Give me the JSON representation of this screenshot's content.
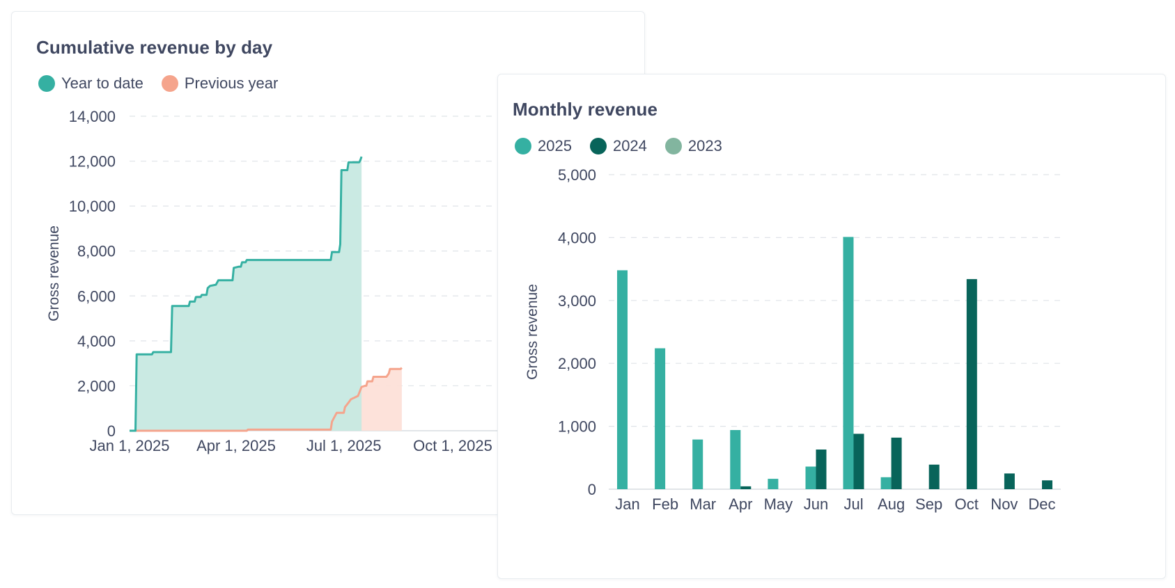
{
  "chart_data": [
    {
      "type": "area",
      "title": "Cumulative revenue by day",
      "xlabel": "",
      "ylabel": "Gross revenue",
      "ylim": [
        0,
        14000
      ],
      "yticks": [
        "0",
        "2,000",
        "4,000",
        "6,000",
        "8,000",
        "10,000",
        "12,000",
        "14,000"
      ],
      "ytick_values": [
        0,
        2000,
        4000,
        6000,
        8000,
        10000,
        12000,
        14000
      ],
      "xlim": [
        "2025-01-01",
        "2025-11-01"
      ],
      "xticks": [
        {
          "label": "Jan 1, 2025",
          "date": "2025-01-01"
        },
        {
          "label": "Apr 1, 2025",
          "date": "2025-04-01"
        },
        {
          "label": "Jul 1, 2025",
          "date": "2025-07-01"
        },
        {
          "label": "Oct 1, 2025",
          "date": "2025-10-01"
        }
      ],
      "grid": true,
      "legend_placement": "top-left",
      "series": [
        {
          "name": "Year to date",
          "color": "#35b0a2",
          "fill": "#c7e9e2",
          "points": [
            [
              "2025-01-01",
              0
            ],
            [
              "2025-01-06",
              0
            ],
            [
              "2025-01-07",
              3400
            ],
            [
              "2025-01-20",
              3400
            ],
            [
              "2025-01-21",
              3500
            ],
            [
              "2025-02-05",
              3500
            ],
            [
              "2025-02-06",
              5550
            ],
            [
              "2025-02-20",
              5550
            ],
            [
              "2025-02-21",
              5750
            ],
            [
              "2025-02-25",
              5750
            ],
            [
              "2025-02-26",
              5950
            ],
            [
              "2025-03-02",
              5950
            ],
            [
              "2025-03-03",
              6050
            ],
            [
              "2025-03-07",
              6050
            ],
            [
              "2025-03-08",
              6350
            ],
            [
              "2025-03-10",
              6450
            ],
            [
              "2025-03-15",
              6500
            ],
            [
              "2025-03-17",
              6700
            ],
            [
              "2025-03-29",
              6700
            ],
            [
              "2025-03-30",
              7250
            ],
            [
              "2025-04-03",
              7300
            ],
            [
              "2025-04-05",
              7300
            ],
            [
              "2025-04-06",
              7500
            ],
            [
              "2025-04-09",
              7500
            ],
            [
              "2025-04-10",
              7600
            ],
            [
              "2025-06-20",
              7600
            ],
            [
              "2025-06-21",
              7950
            ],
            [
              "2025-06-27",
              7950
            ],
            [
              "2025-06-28",
              8300
            ],
            [
              "2025-06-29",
              11600
            ],
            [
              "2025-07-04",
              11600
            ],
            [
              "2025-07-05",
              11950
            ],
            [
              "2025-07-14",
              11950
            ],
            [
              "2025-07-15",
              12050
            ],
            [
              "2025-07-16",
              12200
            ]
          ]
        },
        {
          "name": "Previous year",
          "color": "#f5a48c",
          "fill": "#fddfd6",
          "points": [
            [
              "2025-01-01",
              0
            ],
            [
              "2025-04-10",
              0
            ],
            [
              "2025-04-11",
              50
            ],
            [
              "2025-06-20",
              50
            ],
            [
              "2025-06-21",
              400
            ],
            [
              "2025-06-23",
              600
            ],
            [
              "2025-06-25",
              800
            ],
            [
              "2025-07-01",
              800
            ],
            [
              "2025-07-02",
              1050
            ],
            [
              "2025-07-05",
              1250
            ],
            [
              "2025-07-07",
              1400
            ],
            [
              "2025-07-09",
              1450
            ],
            [
              "2025-07-13",
              1550
            ],
            [
              "2025-07-16",
              1950
            ],
            [
              "2025-07-19",
              2000
            ],
            [
              "2025-07-20",
              2000
            ],
            [
              "2025-07-21",
              2200
            ],
            [
              "2025-07-25",
              2200
            ],
            [
              "2025-07-26",
              2400
            ],
            [
              "2025-08-06",
              2400
            ],
            [
              "2025-08-08",
              2550
            ],
            [
              "2025-08-09",
              2750
            ],
            [
              "2025-08-18",
              2750
            ],
            [
              "2025-08-19",
              2800
            ]
          ]
        }
      ]
    },
    {
      "type": "bar",
      "title": "Monthly revenue",
      "xlabel": "",
      "ylabel": "Gross revenue",
      "ylim": [
        0,
        5000
      ],
      "yticks": [
        "0",
        "1,000",
        "2,000",
        "3,000",
        "4,000",
        "5,000"
      ],
      "ytick_values": [
        0,
        1000,
        2000,
        3000,
        4000,
        5000
      ],
      "grid": true,
      "legend_placement": "top-left",
      "categories": [
        "Jan",
        "Feb",
        "Mar",
        "Apr",
        "May",
        "Jun",
        "Jul",
        "Aug",
        "Sep",
        "Oct",
        "Nov",
        "Dec"
      ],
      "series": [
        {
          "name": "2025",
          "color": "#35b0a2",
          "values": [
            3480,
            2240,
            790,
            940,
            165,
            360,
            4010,
            190,
            0,
            0,
            0,
            0
          ]
        },
        {
          "name": "2024",
          "color": "#08645a",
          "values": [
            0,
            0,
            0,
            45,
            0,
            630,
            880,
            820,
            390,
            3340,
            250,
            140
          ]
        },
        {
          "name": "2023",
          "color": "#82b59f",
          "values": [
            0,
            0,
            0,
            0,
            0,
            0,
            0,
            0,
            0,
            0,
            0,
            0
          ]
        }
      ]
    }
  ]
}
